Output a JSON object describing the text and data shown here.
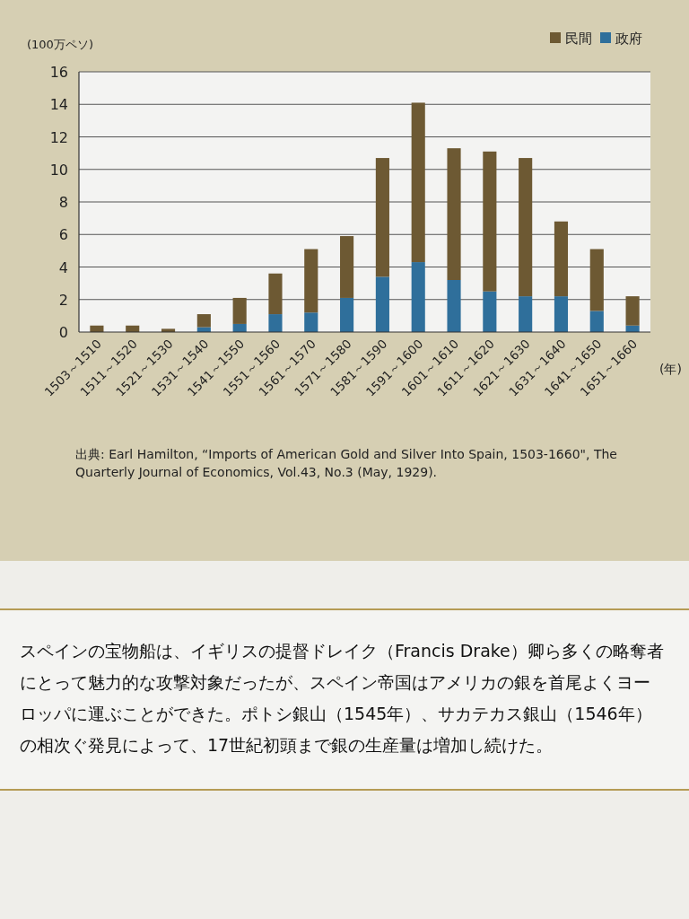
{
  "chart_data": {
    "type": "bar",
    "stacked": true,
    "ylabel": "(100万ペソ)",
    "xlabel": "(年)",
    "categories": [
      "1503～1510",
      "1511～1520",
      "1521～1530",
      "1531～1540",
      "1541～1550",
      "1551～1560",
      "1561～1570",
      "1571～1580",
      "1581～1590",
      "1591～1600",
      "1601～1610",
      "1611～1620",
      "1621～1630",
      "1631～1640",
      "1641～1650",
      "1651～1660"
    ],
    "series": [
      {
        "name": "政府",
        "color": "#2f6f9b",
        "values": [
          0,
          0,
          0,
          0.3,
          0.5,
          1.1,
          1.2,
          2.1,
          3.4,
          4.3,
          3.2,
          2.5,
          2.2,
          2.2,
          1.3,
          0.4
        ]
      },
      {
        "name": "民間",
        "color": "#6d5933",
        "values": [
          0.4,
          0.4,
          0.2,
          0.8,
          1.6,
          2.5,
          3.9,
          3.8,
          7.3,
          9.8,
          8.1,
          8.6,
          8.5,
          4.6,
          3.8,
          1.8
        ]
      }
    ],
    "ylim": [
      0,
      16
    ],
    "yticks": [
      0,
      2,
      4,
      6,
      8,
      10,
      12,
      14,
      16
    ],
    "grid": "y",
    "legend": "top right",
    "annotations": [
      "出典: Earl Hamilton, “Imports of American Gold and Silver Into Spain, 1503-1660\", The Quarterly Journal of Economics, Vol.43, No.3 (May, 1929).",
      "スペインの宝物船は、イギリスの提督ドレイク（Francis Drake）卿ら多くの略奪者にとって魅力的な攻撃対象だったが、スペイン帝国はアメリカの銀を首尾よくヨーロッパに運ぶことができた。ポトシ銀山（1545年）、サカテカス銀山（1546年）の相次ぐ発見によって、17世紀初頭まで銀の生産量は増加し続けた。"
    ]
  }
}
